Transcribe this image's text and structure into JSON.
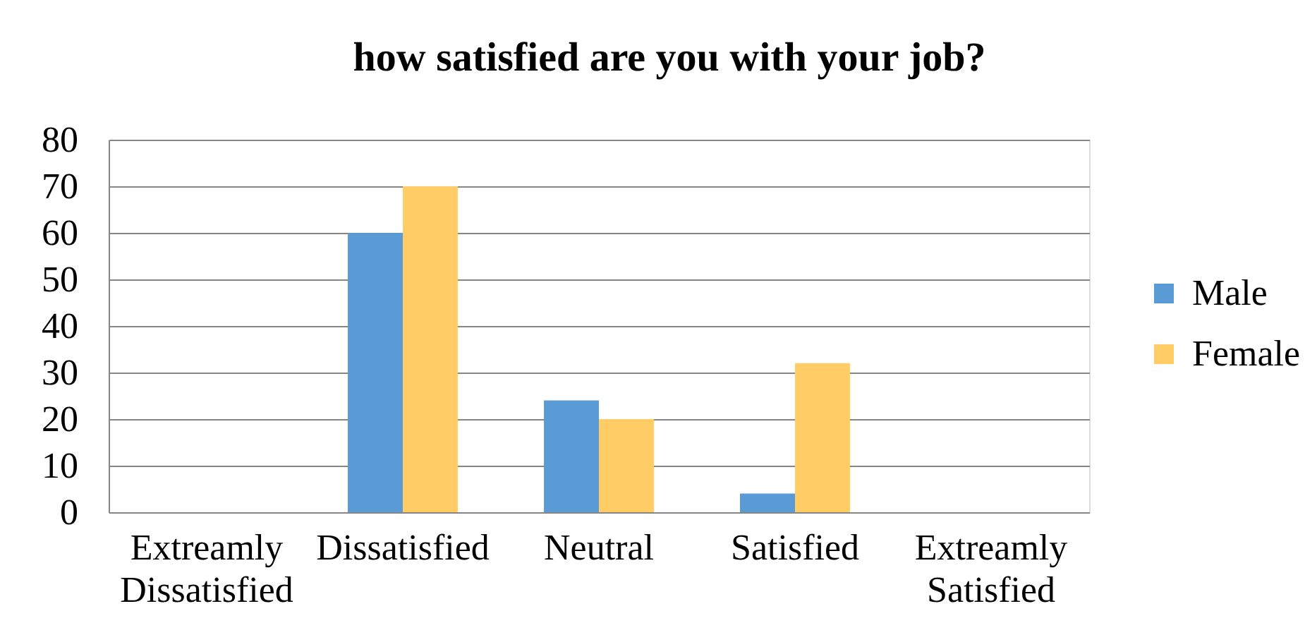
{
  "chart_data": {
    "type": "bar",
    "title": "how satisfied are you with your job?",
    "categories": [
      "Extreamly Dissatisfied",
      "Dissatisfied",
      "Neutral",
      "Satisfied",
      "Extreamly Satisfied"
    ],
    "series": [
      {
        "name": "Male",
        "color": "#5b9bd5",
        "values": [
          0,
          60,
          24,
          4,
          0
        ]
      },
      {
        "name": "Female",
        "color": "#ffcc66",
        "values": [
          0,
          70,
          20,
          32,
          0
        ]
      }
    ],
    "ylim": [
      0,
      80
    ],
    "yticks": [
      0,
      10,
      20,
      30,
      40,
      50,
      60,
      70,
      80
    ],
    "grid": "y",
    "legend": "right"
  }
}
